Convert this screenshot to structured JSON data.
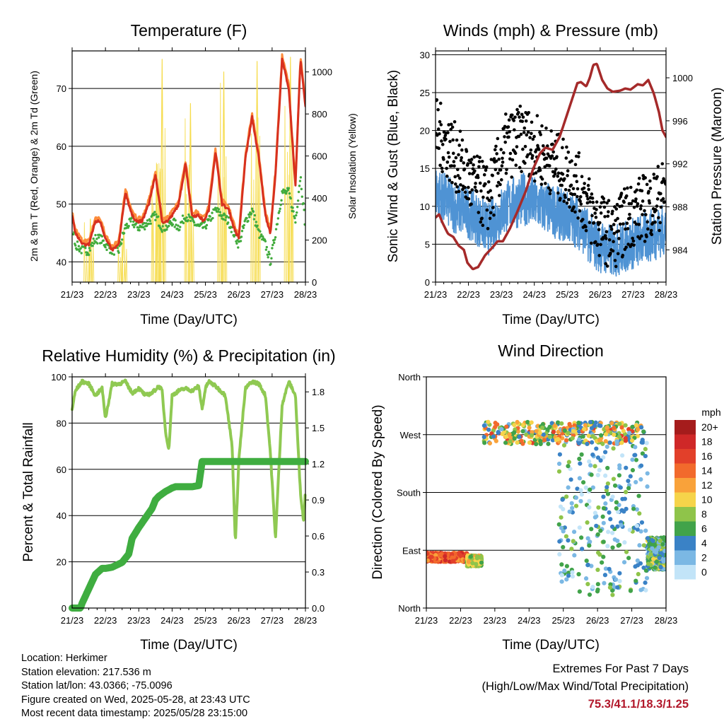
{
  "charts": {
    "temperature": {
      "title": "Temperature (F)",
      "ylabel_left": "2m & 9m T (Red, Orange) & 2m Td (Green)",
      "ylabel_right": "Solar Insolation (Yellow)",
      "xlabel": "Time (Day/UTC)"
    },
    "winds": {
      "title": "Winds (mph) & Pressure (mb)",
      "ylabel_left": "Sonic Wind & Gust (Blue, Black)",
      "ylabel_right": "Station Pressure (Maroon)",
      "xlabel": "Time (Day/UTC)"
    },
    "humidity": {
      "title": "Relative Humidity (%) & Precipitation (in)",
      "ylabel_left": "Percent & Total Rainfall",
      "xlabel": "Time (Day/UTC)"
    },
    "direction": {
      "title": "Wind Direction",
      "ylabel_left": "Direction (Colored By Speed)",
      "xlabel": "Time (Day/UTC)",
      "legend_title": "mph"
    }
  },
  "info": {
    "location": "Location: Herkimer",
    "elevation": "Station elevation: 217.536 m",
    "latlon": "Station lat/lon: 43.0366; -75.0096",
    "created": "Figure created on Wed, 2025-05-28, at 23:43 UTC",
    "recent": "Most recent data timestamp: 2025/05/28 23:15:00"
  },
  "extremes": {
    "line1": "Extremes For Past 7 Days",
    "line2": "(High/Low/Max Wind/Total Precipitation)",
    "values": "75.3/41.1/18.3/1.25"
  },
  "chart_data": [
    {
      "type": "line",
      "x_ticks": [
        "21/23",
        "22/23",
        "23/23",
        "24/23",
        "25/23",
        "26/23",
        "27/23",
        "28/23"
      ],
      "x_range": [
        0,
        7
      ],
      "y_range": [
        36.5,
        76.5
      ],
      "y_ticks": [
        40,
        50,
        60,
        70
      ],
      "y2_range": [
        0,
        1100
      ],
      "y2_ticks": [
        0,
        200,
        400,
        600,
        800,
        1000
      ],
      "colors": {
        "t2m": "#d7301f",
        "t9m": "#fd8d3c",
        "td": "#41ab3c",
        "solar": "#f6dc4d"
      },
      "series": [
        {
          "key": "t2m",
          "x": [
            0,
            0.1,
            0.3,
            0.5,
            0.7,
            0.85,
            1.0,
            1.2,
            1.4,
            1.6,
            1.8,
            1.95,
            2.1,
            2.3,
            2.5,
            2.7,
            2.85,
            3.0,
            3.2,
            3.4,
            3.6,
            3.8,
            3.95,
            4.1,
            4.3,
            4.5,
            4.7,
            4.85,
            5.0,
            5.2,
            5.4,
            5.6,
            5.8,
            5.95,
            6.1,
            6.3,
            6.5,
            6.7,
            6.85,
            7.0
          ],
          "y": [
            48,
            45,
            43,
            43,
            47,
            47,
            44,
            42,
            43,
            52,
            48,
            47,
            47,
            50,
            55,
            47,
            47,
            48,
            50,
            57,
            48,
            48,
            47,
            49,
            59,
            50,
            49,
            46,
            44,
            58,
            65,
            58,
            48,
            45,
            55,
            75,
            70,
            53,
            75,
            67
          ]
        },
        {
          "key": "td",
          "x": [
            0,
            0.1,
            0.3,
            0.5,
            0.7,
            0.85,
            1.0,
            1.2,
            1.4,
            1.6,
            1.8,
            1.95,
            2.1,
            2.3,
            2.5,
            2.7,
            2.85,
            3.0,
            3.2,
            3.4,
            3.6,
            3.8,
            3.95,
            4.1,
            4.3,
            4.5,
            4.7,
            4.85,
            5.0,
            5.2,
            5.4,
            5.6,
            5.8,
            5.95,
            6.1,
            6.3,
            6.5,
            6.7,
            6.85,
            7.0
          ],
          "y": [
            47,
            43,
            42,
            42,
            44,
            44,
            43,
            42,
            42,
            46,
            47,
            46,
            46,
            47,
            48,
            46,
            46,
            47,
            46,
            48,
            47,
            46,
            46,
            47,
            49,
            48,
            47,
            45,
            43,
            47,
            49,
            45,
            43,
            40,
            45,
            52,
            52,
            47,
            55,
            46
          ]
        },
        {
          "key": "solar",
          "peaks": [
            {
              "x": 0.55,
              "y": 300
            },
            {
              "x": 1.55,
              "y": 250
            },
            {
              "x": 2.55,
              "y": 560
            },
            {
              "x": 2.7,
              "y": 1060
            },
            {
              "x": 3.55,
              "y": 850
            },
            {
              "x": 4.55,
              "y": 1000
            },
            {
              "x": 5.55,
              "y": 1050
            },
            {
              "x": 6.55,
              "y": 1070
            }
          ]
        }
      ]
    },
    {
      "type": "scatter",
      "x_ticks": [
        "21/23",
        "22/23",
        "23/23",
        "24/23",
        "25/23",
        "26/23",
        "27/23",
        "28/23"
      ],
      "x_range": [
        0,
        6.5
      ],
      "y_range": [
        0,
        30.5
      ],
      "y_ticks": [
        0,
        5,
        10,
        15,
        20,
        25,
        30
      ],
      "y2_range": [
        981,
        1002.5
      ],
      "y2_ticks": [
        984,
        988,
        992,
        996,
        1000
      ],
      "colors": {
        "wind": "#4f93d4",
        "gust": "#000000",
        "pressure": "#a52a2a"
      },
      "wind_mean": {
        "x": [
          0,
          0.5,
          1,
          1.5,
          2,
          2.5,
          3,
          3.5,
          4,
          4.5,
          5,
          5.5,
          6,
          6.5
        ],
        "y": [
          12,
          10,
          9,
          7,
          10,
          11,
          10,
          9,
          8,
          5,
          4,
          5,
          6,
          7
        ]
      },
      "gust_mean": {
        "x": [
          0,
          0.5,
          1,
          1.5,
          2,
          2.5,
          3,
          3.5,
          4,
          4.5,
          5,
          5.5,
          6,
          6.5
        ],
        "y": [
          20,
          17,
          13,
          11,
          18,
          19,
          17,
          15,
          13,
          8,
          6,
          9,
          10,
          12
        ]
      },
      "pressure": {
        "x": [
          0,
          0.1,
          0.2,
          0.35,
          0.5,
          0.65,
          0.8,
          0.9,
          1.05,
          1.2,
          1.4,
          1.6,
          1.75,
          1.9,
          2.1,
          2.3,
          2.55,
          2.75,
          2.95,
          3.1,
          3.3,
          3.5,
          3.7,
          3.85,
          4.0,
          4.1,
          4.25,
          4.35,
          4.45,
          4.55,
          4.7,
          4.85,
          5.0,
          5.2,
          5.35,
          5.5,
          5.7,
          5.85,
          6.0,
          6.15,
          6.3,
          6.4,
          6.5
        ],
        "y": [
          987,
          987.3,
          986.5,
          985.5,
          985.2,
          984.4,
          984,
          982.8,
          982.2,
          982.4,
          983.5,
          984.2,
          984.8,
          984.8,
          986,
          987.5,
          989.5,
          991.5,
          993,
          993.5,
          993.3,
          994.5,
          996.5,
          998,
          999.5,
          999.6,
          999.2,
          1000,
          1001.2,
          1001.3,
          999.8,
          999,
          998.7,
          998.8,
          999,
          998.9,
          999.4,
          999.3,
          999.8,
          998.6,
          996.8,
          995.1,
          994.5
        ]
      }
    },
    {
      "type": "line",
      "x_ticks": [
        "21/23",
        "22/23",
        "23/23",
        "24/23",
        "25/23",
        "26/23",
        "27/23",
        "28/23"
      ],
      "x_range": [
        0,
        7
      ],
      "y_range": [
        0,
        100
      ],
      "y_ticks": [
        0,
        20,
        40,
        60,
        80,
        100
      ],
      "y2_range": [
        0,
        1.925
      ],
      "y2_ticks": [
        0.0,
        0.3,
        0.6,
        0.9,
        1.2,
        1.5,
        1.8
      ],
      "colors": {
        "rh": "#8fc952",
        "precip": "#3fad40"
      },
      "series": [
        {
          "key": "rh",
          "x": [
            0,
            0.1,
            0.3,
            0.5,
            0.7,
            0.9,
            1.0,
            1.2,
            1.4,
            1.6,
            1.8,
            2.0,
            2.2,
            2.4,
            2.6,
            2.7,
            2.8,
            2.9,
            3.0,
            3.2,
            3.4,
            3.6,
            3.8,
            3.9,
            4.0,
            4.1,
            4.3,
            4.6,
            4.8,
            4.9,
            5.0,
            5.2,
            5.4,
            5.6,
            5.8,
            5.95,
            6.1,
            6.3,
            6.5,
            6.7,
            6.85,
            6.95,
            7.0
          ],
          "y": [
            86,
            94,
            98,
            97,
            92,
            95,
            82,
            97,
            97,
            98,
            93,
            95,
            92,
            93,
            96,
            94,
            77,
            68,
            92,
            94,
            95,
            94,
            96,
            86,
            95,
            98,
            96,
            92,
            70,
            28,
            64,
            95,
            98,
            97,
            92,
            67,
            30,
            88,
            98,
            92,
            50,
            37,
            52
          ]
        },
        {
          "key": "precip",
          "x": [
            0,
            0.25,
            0.3,
            0.5,
            0.6,
            0.7,
            0.9,
            1.0,
            1.2,
            1.5,
            1.7,
            1.8,
            2.0,
            2.2,
            2.4,
            2.5,
            2.6,
            2.8,
            3.0,
            3.1,
            3.3,
            3.6,
            3.8,
            3.9,
            4.0,
            4.3,
            5.0,
            6.0,
            7.0
          ],
          "y": [
            0,
            0,
            0.04,
            0.16,
            0.22,
            0.28,
            0.33,
            0.33,
            0.34,
            0.38,
            0.45,
            0.58,
            0.67,
            0.75,
            0.83,
            0.9,
            0.93,
            0.97,
            1.0,
            1.01,
            1.01,
            1.01,
            1.02,
            1.22,
            1.22,
            1.22,
            1.22,
            1.22,
            1.22
          ]
        }
      ]
    },
    {
      "type": "scatter",
      "x_ticks": [
        "21/23",
        "22/23",
        "23/23",
        "24/23",
        "25/23",
        "26/23",
        "27/23",
        "28/23"
      ],
      "x_range": [
        0,
        6.5
      ],
      "y_categories": [
        "North",
        "East",
        "South",
        "West",
        "North"
      ],
      "y_range": [
        0,
        360
      ],
      "legend": {
        "labels": [
          "20+",
          "18",
          "16",
          "14",
          "12",
          "10",
          "8",
          "6",
          "4",
          "2",
          "0"
        ],
        "colors": [
          "#a51c1c",
          "#cf2828",
          "#e2402a",
          "#f26a2c",
          "#f9a23a",
          "#f6d44a",
          "#8fc44a",
          "#41a34a",
          "#3a82c6",
          "#7bb8e4",
          "#c2e4f8"
        ]
      },
      "clusters": [
        {
          "x": [
            0,
            1.1
          ],
          "dir": [
            72,
            86
          ],
          "speed": [
            12,
            18
          ]
        },
        {
          "x": [
            1.1,
            1.5
          ],
          "dir": [
            65,
            82
          ],
          "speed": [
            6,
            12
          ]
        },
        {
          "x": [
            1.55,
            5.9
          ],
          "dir": [
            255,
            290
          ],
          "speed": [
            2,
            16
          ]
        },
        {
          "x": [
            3.6,
            6.0
          ],
          "dir": [
            20,
            260
          ],
          "speed": [
            0,
            8
          ]
        },
        {
          "x": [
            6.0,
            6.5
          ],
          "dir": [
            60,
            110
          ],
          "speed": [
            2,
            10
          ]
        }
      ]
    }
  ]
}
